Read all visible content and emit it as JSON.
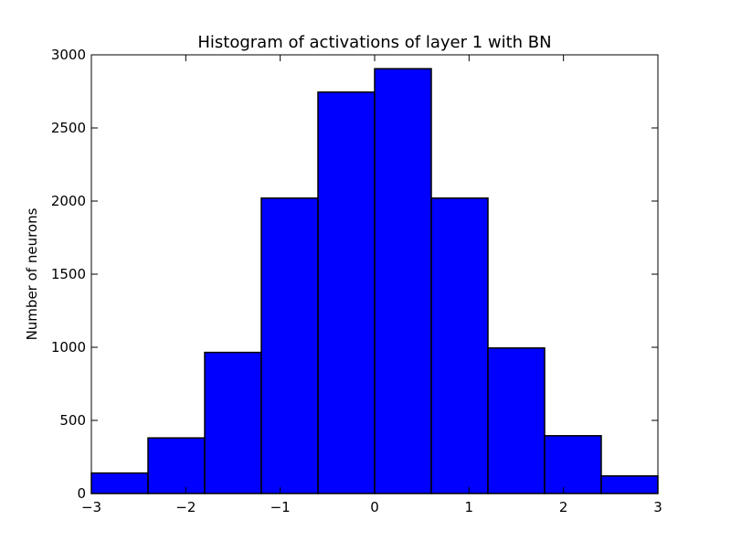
{
  "chart_data": {
    "type": "bar",
    "title": "Histogram of activations of layer 1  with BN",
    "xlabel": "",
    "ylabel": "Number of neurons",
    "bin_edges": [
      -3.0,
      -2.4,
      -1.8,
      -1.2,
      -0.6,
      0.0,
      0.6,
      1.2,
      1.8,
      2.4,
      3.0
    ],
    "values": [
      140,
      380,
      965,
      2020,
      2745,
      2905,
      2020,
      995,
      395,
      120
    ],
    "xlim": [
      -3,
      3
    ],
    "ylim": [
      0,
      3000
    ],
    "xticks": [
      -3,
      -2,
      -1,
      0,
      1,
      2,
      3
    ],
    "xtick_labels": [
      "−3",
      "−2",
      "−1",
      "0",
      "1",
      "2",
      "3"
    ],
    "yticks": [
      0,
      500,
      1000,
      1500,
      2000,
      2500,
      3000
    ],
    "ytick_labels": [
      "0",
      "500",
      "1000",
      "1500",
      "2000",
      "2500",
      "3000"
    ],
    "grid": false,
    "legend": "none",
    "bar_color": "#0000ff",
    "edge_color": "#000000"
  }
}
